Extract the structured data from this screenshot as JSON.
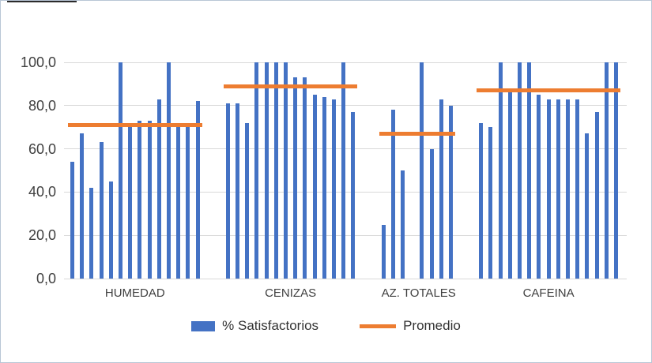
{
  "chart_data": {
    "type": "bar",
    "title": "",
    "xlabel": "",
    "ylabel": "",
    "ylim": [
      0,
      100
    ],
    "grid": true,
    "legend_position": "bottom",
    "yticks": [
      {
        "label": "0,0",
        "value": 0
      },
      {
        "label": "20,0",
        "value": 20
      },
      {
        "label": "40,0",
        "value": 40
      },
      {
        "label": "60,0",
        "value": 60
      },
      {
        "label": "80,0",
        "value": 80
      },
      {
        "label": "100,0",
        "value": 100
      }
    ],
    "series_names": [
      "% Satisfactorios",
      "Promedio"
    ],
    "groups": [
      {
        "category": "HUMEDAD",
        "bar_values": [
          54,
          67,
          42,
          63,
          45,
          100,
          72,
          73,
          73,
          83,
          100,
          70,
          71,
          82
        ],
        "promedio": 71
      },
      {
        "category": "CENIZAS",
        "bar_values": [
          81,
          81,
          72,
          100,
          100,
          100,
          100,
          93,
          93,
          85,
          84,
          83,
          100,
          77
        ],
        "promedio": 89
      },
      {
        "category": "AZ. TOTALES",
        "bar_values": [
          25,
          78,
          50,
          null,
          100,
          60,
          83,
          80
        ],
        "promedio": 67
      },
      {
        "category": "CAFEINA",
        "bar_values": [
          72,
          70,
          100,
          86,
          100,
          100,
          85,
          83,
          83,
          83,
          83,
          67,
          77,
          100,
          100
        ],
        "promedio": 87
      }
    ]
  },
  "legend": {
    "bars_label": "% Satisfactorios",
    "line_label": "Promedio"
  },
  "colors": {
    "bar": "#4472C4",
    "line": "#ED7D31",
    "gridline": "#D9D9D9",
    "axis_text": "#404040"
  }
}
